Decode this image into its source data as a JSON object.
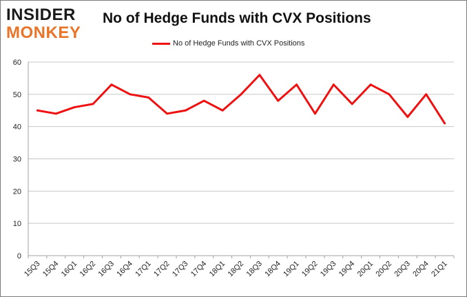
{
  "header": {
    "logo_text_line1": "INSIDER",
    "logo_text_line2": "MONKEY",
    "title": "No of Hedge Funds with CVX Positions"
  },
  "legend": {
    "label": "No of Hedge Funds with CVX Positions",
    "color": "#ee1111"
  },
  "colors": {
    "series": "#ee1111",
    "grid": "#c8c8c8",
    "axis": "#a0a0a0",
    "logo_dark": "#1a1a1a",
    "logo_accent": "#e8752a"
  },
  "chart_data": {
    "type": "line",
    "title": "No of Hedge Funds with CVX Positions",
    "xlabel": "",
    "ylabel": "",
    "categories": [
      "15Q3",
      "15Q4",
      "16Q1",
      "16Q2",
      "16Q3",
      "16Q4",
      "17Q1",
      "17Q2",
      "17Q3",
      "17Q4",
      "18Q1",
      "18Q2",
      "18Q3",
      "18Q4",
      "19Q1",
      "19Q2",
      "19Q3",
      "19Q4",
      "20Q1",
      "20Q2",
      "20Q3",
      "20Q4",
      "21Q1"
    ],
    "series": [
      {
        "name": "No of Hedge Funds with CVX Positions",
        "values": [
          45,
          44,
          46,
          47,
          53,
          50,
          49,
          44,
          45,
          48,
          45,
          50,
          56,
          48,
          53,
          44,
          53,
          47,
          53,
          50,
          43,
          50,
          41
        ]
      }
    ],
    "ylim": [
      0,
      60
    ],
    "yticks": [
      0,
      10,
      20,
      30,
      40,
      50,
      60
    ],
    "grid": true,
    "legend_position": "top-center"
  }
}
